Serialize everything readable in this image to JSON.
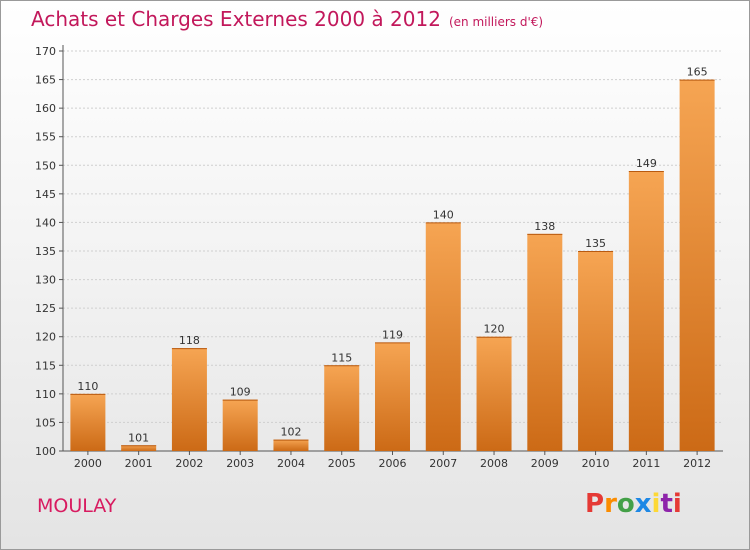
{
  "header": {
    "title": "Achats et Charges Externes 2000 à 2012",
    "subtitle": "(en milliers d'€)"
  },
  "footer": {
    "place": "MOULAY",
    "brand": [
      "P",
      "r",
      "o",
      "x",
      "i",
      "t",
      "i"
    ]
  },
  "colors": {
    "title": "#c2185b",
    "bar_top": "#f6a553",
    "bar_bottom": "#cc6a16",
    "brand_letters": [
      "#e53935",
      "#fb8c00",
      "#43a047",
      "#1e88e5",
      "#fdd835",
      "#8e24aa",
      "#e53935"
    ]
  },
  "chart_data": {
    "type": "bar",
    "title": "Achats et Charges Externes 2000 à 2012",
    "subtitle": "(en milliers d'€)",
    "categories": [
      "2000",
      "2001",
      "2002",
      "2003",
      "2004",
      "2005",
      "2006",
      "2007",
      "2008",
      "2009",
      "2010",
      "2011",
      "2012"
    ],
    "values": [
      110,
      101,
      118,
      109,
      102,
      115,
      119,
      140,
      120,
      138,
      135,
      149,
      165
    ],
    "ylim": [
      100,
      170
    ],
    "yticks": [
      100,
      105,
      110,
      115,
      120,
      125,
      130,
      135,
      140,
      145,
      150,
      155,
      160,
      165,
      170
    ],
    "grid": true,
    "data_labels": true
  }
}
